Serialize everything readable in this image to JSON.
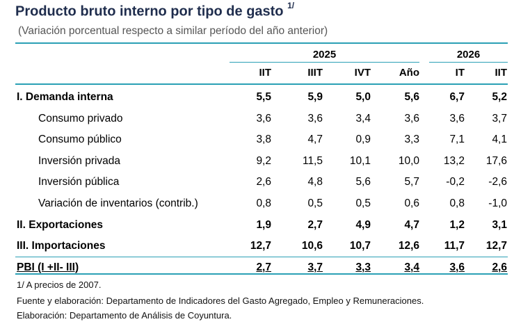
{
  "title": "Producto bruto interno por tipo de gasto",
  "title_note": "1/",
  "subtitle": "(Variación porcentual respecto a similar período del año anterior)",
  "years": [
    "2025",
    "2026"
  ],
  "columns": [
    "IIT",
    "IIIT",
    "IVT",
    "Año",
    "IT",
    "IIT"
  ],
  "rows": [
    {
      "label": "I. Demanda interna",
      "style": "bold",
      "values": [
        "5,5",
        "5,9",
        "5,0",
        "5,6",
        "6,7",
        "5,2"
      ]
    },
    {
      "label": "Consumo privado",
      "style": "sub",
      "values": [
        "3,6",
        "3,6",
        "3,4",
        "3,6",
        "3,6",
        "3,7"
      ]
    },
    {
      "label": "Consumo público",
      "style": "sub",
      "values": [
        "3,8",
        "4,7",
        "0,9",
        "3,3",
        "7,1",
        "4,1"
      ]
    },
    {
      "label": "Inversión privada",
      "style": "sub",
      "values": [
        "9,2",
        "11,5",
        "10,1",
        "10,0",
        "13,2",
        "17,6"
      ]
    },
    {
      "label": "Inversión pública",
      "style": "sub",
      "values": [
        "2,6",
        "4,8",
        "5,6",
        "5,7",
        "-0,2",
        "-2,6"
      ]
    },
    {
      "label": "Variación de inventarios (contrib.)",
      "style": "sub",
      "values": [
        "0,8",
        "0,5",
        "0,5",
        "0,6",
        "0,8",
        "-1,0"
      ]
    },
    {
      "label": "II. Exportaciones",
      "style": "bold",
      "values": [
        "1,9",
        "2,7",
        "4,9",
        "4,7",
        "1,2",
        "3,1"
      ]
    },
    {
      "label": "III. Importaciones",
      "style": "bold",
      "values": [
        "12,7",
        "10,6",
        "10,7",
        "12,6",
        "11,7",
        "12,7"
      ]
    },
    {
      "label": "PBI (I +II- III)",
      "style": "bold pbi",
      "values": [
        "2,7",
        "3,7",
        "3,3",
        "3,4",
        "3,6",
        "2,6"
      ]
    }
  ],
  "notes": [
    "1/ A precios de 2007.",
    "Fuente y elaboración: Departamento de Indicadores del Gasto Agregado, Empleo y Remuneraciones.",
    "Elaboración: Departamento de Análisis de Coyuntura."
  ]
}
